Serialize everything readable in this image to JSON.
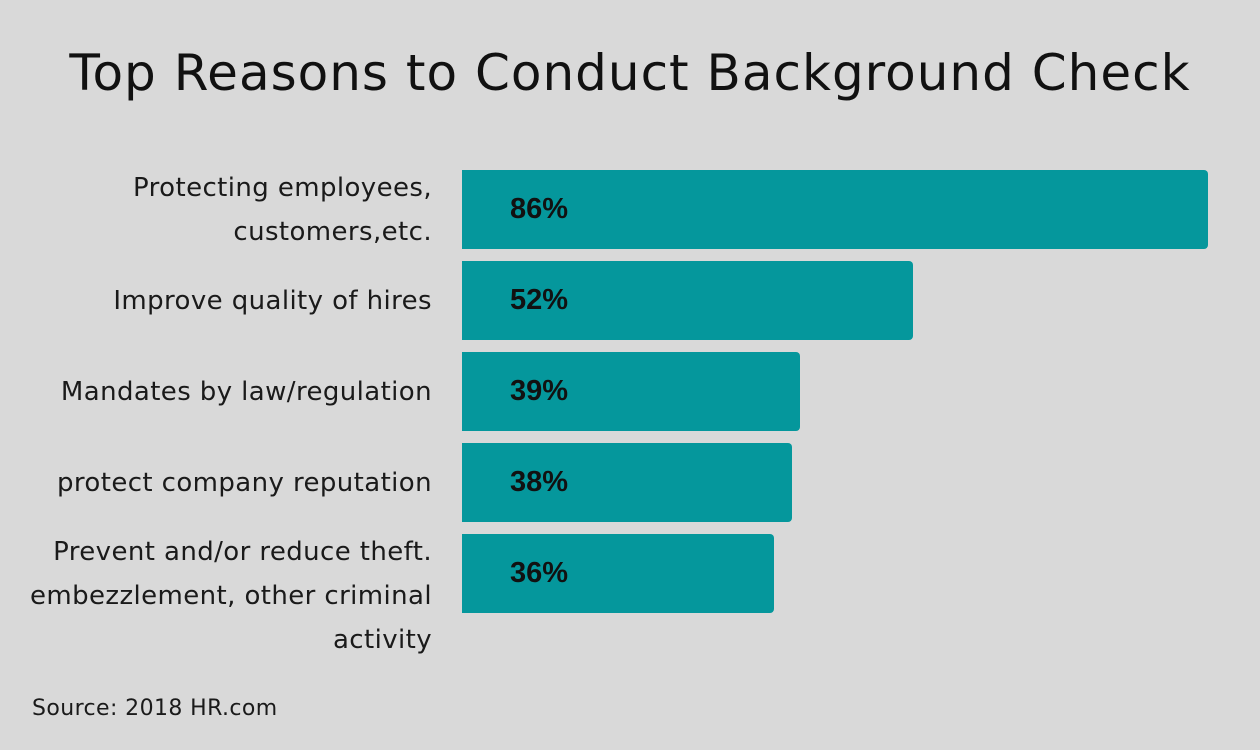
{
  "chart_data": {
    "type": "bar",
    "orientation": "horizontal",
    "title": "Top Reasons to Conduct Background Check",
    "categories": [
      [
        "Protecting employees,",
        "customers,etc."
      ],
      [
        "Improve quality of hires"
      ],
      [
        "Mandates by law/regulation"
      ],
      [
        "protect company reputation"
      ],
      [
        "Prevent and/or reduce theft.",
        "embezzlement, other criminal",
        "activity"
      ]
    ],
    "values": [
      86,
      52,
      39,
      38,
      36
    ],
    "value_labels": [
      "86%",
      "52%",
      "39%",
      "38%",
      "36%"
    ],
    "unit": "%",
    "xlim": [
      0,
      86
    ],
    "grid": false,
    "bar_color": "#05979c",
    "source": "Source: 2018 HR.com"
  }
}
